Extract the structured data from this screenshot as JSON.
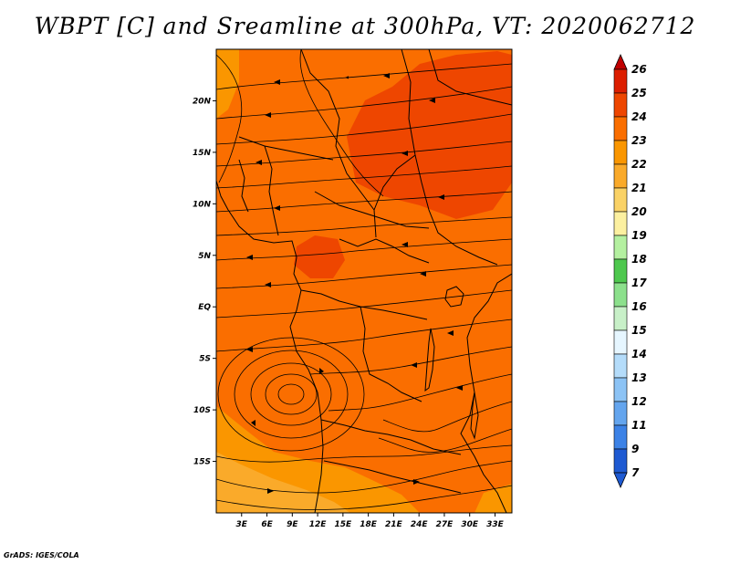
{
  "title": "WBPT [C] and Sreamline at 300hPa, VT: 2020062712",
  "credit": "GrADS: IGES/COLA",
  "map": {
    "lon_range": [
      0,
      35
    ],
    "lat_range": [
      -20,
      25
    ],
    "lon_ticks": [
      {
        "lon": 3,
        "label": "3E"
      },
      {
        "lon": 6,
        "label": "6E"
      },
      {
        "lon": 9,
        "label": "9E"
      },
      {
        "lon": 12,
        "label": "12E"
      },
      {
        "lon": 15,
        "label": "15E"
      },
      {
        "lon": 18,
        "label": "18E"
      },
      {
        "lon": 21,
        "label": "21E"
      },
      {
        "lon": 24,
        "label": "24E"
      },
      {
        "lon": 27,
        "label": "27E"
      },
      {
        "lon": 30,
        "label": "30E"
      },
      {
        "lon": 33,
        "label": "33E"
      }
    ],
    "lat_ticks": [
      {
        "lat": 20,
        "label": "20N"
      },
      {
        "lat": 15,
        "label": "15N"
      },
      {
        "lat": 10,
        "label": "10N"
      },
      {
        "lat": 5,
        "label": "5N"
      },
      {
        "lat": 0,
        "label": "EQ"
      },
      {
        "lat": -5,
        "label": "5S"
      },
      {
        "lat": -10,
        "label": "10S"
      },
      {
        "lat": -15,
        "label": "15S"
      }
    ],
    "cyclone_center": {
      "lon": 8.5,
      "lat": -8.5
    }
  },
  "colorbar": {
    "levels": [
      "26",
      "25",
      "24",
      "23",
      "22",
      "21",
      "20",
      "19",
      "18",
      "17",
      "16",
      "15",
      "14",
      "13",
      "12",
      "11",
      "9",
      "7"
    ],
    "colors": [
      "#c00000",
      "#dc1e00",
      "#ee4600",
      "#fa6e00",
      "#fa9600",
      "#faaa2a",
      "#fad266",
      "#fcf0a0",
      "#b4f0a0",
      "#4ec84e",
      "#8ce08c",
      "#c8f0c8",
      "#e6f6ff",
      "#b4dcfa",
      "#8cc3f5",
      "#64a5ee",
      "#3c82e6",
      "#1e5ad2"
    ]
  },
  "colors": {
    "base": "#fa6e00",
    "warm": "#ee4600",
    "cool": "#fa9600",
    "coolest": "#faaa2a",
    "line": "#000000"
  }
}
